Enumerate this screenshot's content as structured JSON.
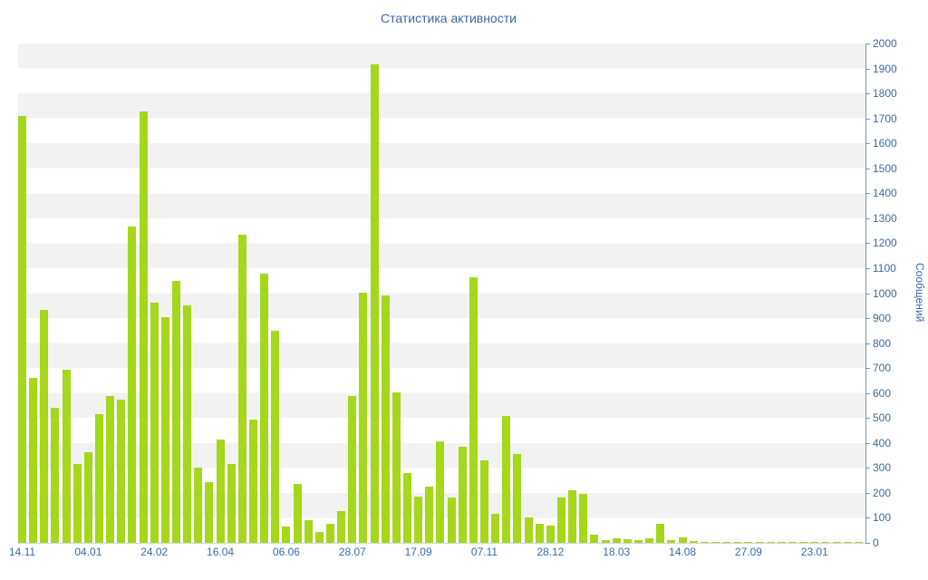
{
  "chart_data": {
    "type": "bar",
    "title": "Статистика активности",
    "ylabel": "Сообщений",
    "xlabel": "",
    "ylim": [
      0,
      2000
    ],
    "ytick_step": 100,
    "ytick_labels": [
      0,
      100,
      200,
      300,
      400,
      500,
      600,
      700,
      800,
      900,
      1000,
      1100,
      1200,
      1300,
      1400,
      1500,
      1600,
      1700,
      1800,
      1900,
      2000
    ],
    "x_tick_labels": [
      "14.11",
      "04.01",
      "24.02",
      "16.04",
      "06.06",
      "28.07",
      "17.09",
      "07.11",
      "28.12",
      "18.03",
      "14.08",
      "27.09",
      "23.01"
    ],
    "bars_per_label": 6,
    "values": [
      1710,
      660,
      933,
      541,
      693,
      316,
      363,
      515,
      588,
      573,
      1267,
      1728,
      962,
      904,
      1049,
      951,
      301,
      243,
      414,
      316,
      1234,
      494,
      1078,
      850,
      65,
      236,
      91,
      44,
      76,
      127,
      588,
      1002,
      1917,
      991,
      603,
      280,
      185,
      225,
      407,
      182,
      385,
      1064,
      331,
      116,
      508,
      356,
      102,
      76,
      69,
      182,
      211,
      196,
      33,
      11,
      18,
      15,
      11,
      18,
      76,
      11,
      22,
      7,
      4,
      3,
      2,
      3,
      2,
      5,
      3,
      2,
      2,
      3,
      4,
      2,
      2,
      2,
      2
    ],
    "grid": "striped horizontal bands",
    "legend": "none",
    "bar_color": "#a5d71c",
    "stripe_color": "#f2f2f2",
    "axis_text_color": "#3b6aa5",
    "axis_line_color": "#7a93b8"
  }
}
